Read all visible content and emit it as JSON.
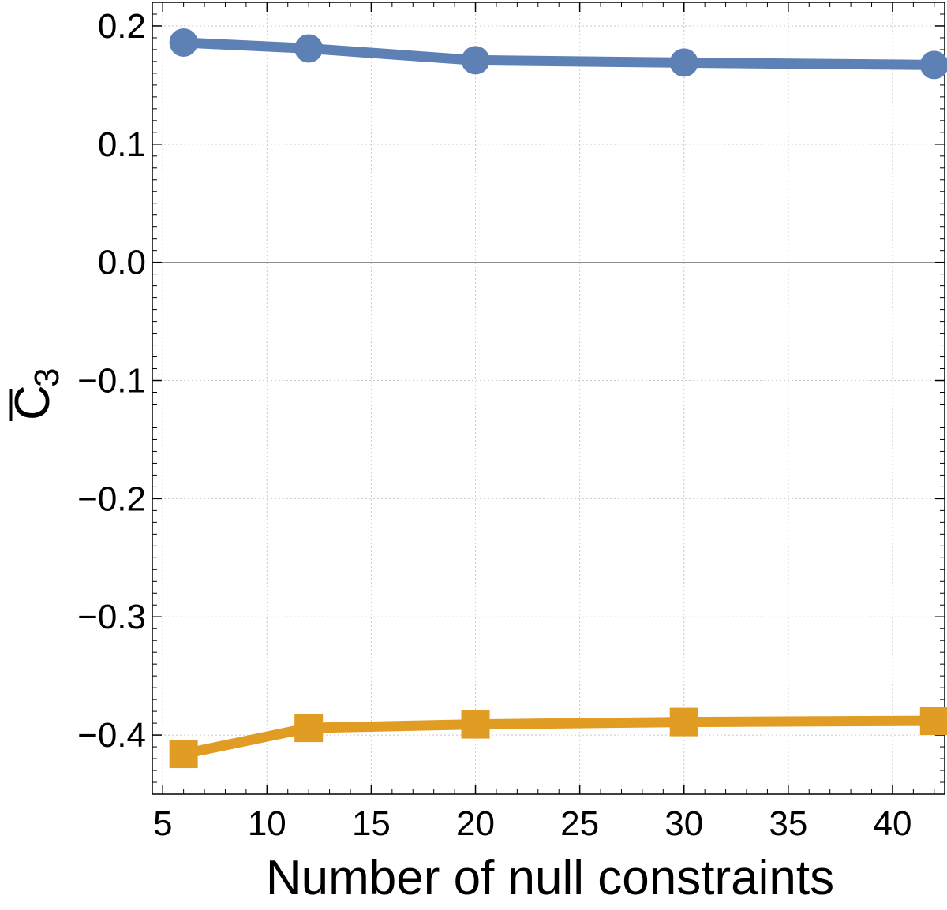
{
  "chart_data": {
    "type": "line",
    "xlabel": "Number of null constraints",
    "ylabel_main": "C",
    "ylabel_sub": "3",
    "xlim": [
      4.5,
      42.5
    ],
    "ylim": [
      -0.45,
      0.22
    ],
    "xticks": [
      5,
      10,
      15,
      20,
      25,
      30,
      35,
      40
    ],
    "yticks": [
      0.2,
      0.1,
      0.0,
      -0.1,
      -0.2,
      -0.3,
      -0.4
    ],
    "ytick_labels": [
      "0.2",
      "0.1",
      "0.0",
      "−0.1",
      "−0.2",
      "−0.3",
      "−0.4"
    ],
    "grid": true,
    "x": [
      6,
      12,
      20,
      30,
      42
    ],
    "series": [
      {
        "marker": "circle",
        "color": "#5e81b5",
        "values": [
          0.186,
          0.181,
          0.171,
          0.169,
          0.167
        ]
      },
      {
        "marker": "square",
        "color": "#e19c24",
        "values": [
          -0.416,
          -0.394,
          -0.391,
          -0.389,
          -0.388
        ]
      }
    ]
  }
}
